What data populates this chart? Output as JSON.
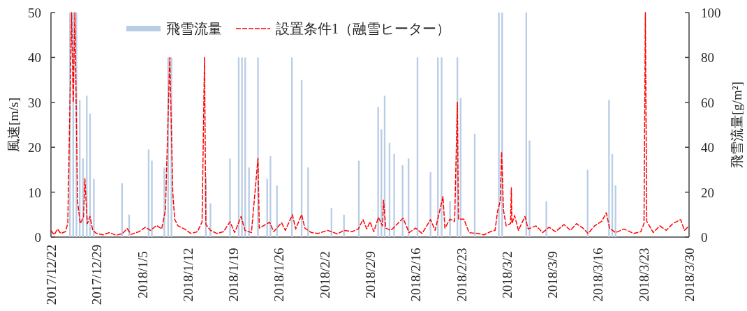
{
  "chart_data": {
    "type": "bar",
    "ylabel": "風速[m/s]",
    "y2label": "飛雪流量[g/m²]",
    "legend": "top left",
    "xlim": [
      "2017-12-22",
      "2018-03-30"
    ],
    "xticks": [
      {
        "value": "2017-12-22",
        "label": "2017/12/22"
      },
      {
        "value": "2017-12-29",
        "label": "2017/12/29"
      },
      {
        "value": "2018-01-05",
        "label": "2018/1/5"
      },
      {
        "value": "2018-01-12",
        "label": "2018/1/12"
      },
      {
        "value": "2018-01-19",
        "label": "2018/1/19"
      },
      {
        "value": "2018-01-26",
        "label": "2018/1/26"
      },
      {
        "value": "2018-02-02",
        "label": "2018/2/2"
      },
      {
        "value": "2018-02-09",
        "label": "2018/2/9"
      },
      {
        "value": "2018-02-16",
        "label": "2018/2/16"
      },
      {
        "value": "2018-02-23",
        "label": "2018/2/23"
      },
      {
        "value": "2018-03-02",
        "label": "2018/3/2"
      },
      {
        "value": "2018-03-09",
        "label": "2018/3/9"
      },
      {
        "value": "2018-03-16",
        "label": "2018/3/16"
      },
      {
        "value": "2018-03-23",
        "label": "2018/3/23"
      },
      {
        "value": "2018-03-30",
        "label": "2018/3/30"
      }
    ],
    "ylim": [
      0,
      50
    ],
    "yticks": [
      0,
      10,
      20,
      30,
      40,
      50
    ],
    "y2lim": [
      0,
      100
    ],
    "y2ticks": [
      0,
      20,
      40,
      60,
      80,
      100
    ],
    "series": [
      {
        "name": "飛雪流量",
        "axis": "y2",
        "color": "#b9cde5",
        "x": [
          "2017-12-24T22:00",
          "2017-12-25T10:00",
          "2017-12-25T22:00",
          "2017-12-26T10:00",
          "2017-12-26T22:00",
          "2017-12-27T12:00",
          "2017-12-28T00:00",
          "2017-12-28T14:00",
          "2018-01-01T22:00",
          "2018-01-03T00:00",
          "2018-01-06T00:00",
          "2018-01-06T12:00",
          "2018-01-08T10:00",
          "2018-01-09T00:00",
          "2018-01-09T12:00",
          "2018-01-14T19:00",
          "2018-01-15T12:00",
          "2018-01-18T12:00",
          "2018-01-19T20:00",
          "2018-01-20T08:00",
          "2018-01-20T20:00",
          "2018-01-21T10:00",
          "2018-01-22T19:00",
          "2018-01-24T05:00",
          "2018-01-24T17:00",
          "2018-01-25T17:00",
          "2018-01-28T00:00",
          "2018-01-29T12:00",
          "2018-01-30T12:00",
          "2018-02-03T02:00",
          "2018-02-05T00:00",
          "2018-02-07T07:00",
          "2018-02-10T06:00",
          "2018-02-10T18:00",
          "2018-02-11T06:00",
          "2018-02-12T00:00",
          "2018-02-12T17:00",
          "2018-02-14T00:00",
          "2018-02-14T22:00",
          "2018-02-16T07:00",
          "2018-02-18T07:00",
          "2018-02-19T10:00",
          "2018-02-20T00:00",
          "2018-02-21T07:00",
          "2018-02-22T10:00",
          "2018-02-22T22:00",
          "2018-02-25T02:00",
          "2018-02-28T19:00",
          "2018-03-01T07:00",
          "2018-03-05T00:00",
          "2018-03-05T12:00",
          "2018-03-08T02:00",
          "2018-03-14T10:00",
          "2018-03-17T17:00",
          "2018-03-18T05:00",
          "2018-03-18T17:00"
        ],
        "values": [
          100,
          100,
          100,
          61,
          35,
          63,
          55,
          26,
          24,
          10,
          39,
          34,
          31,
          80,
          80,
          27,
          15,
          35,
          80,
          80,
          80,
          31,
          80,
          26,
          36,
          23,
          80,
          70,
          31,
          13,
          10,
          34,
          58,
          48,
          63,
          42,
          37,
          32,
          35,
          80,
          29,
          80,
          80,
          16,
          80,
          62,
          46,
          100,
          100,
          100,
          43,
          16,
          30,
          61,
          37,
          23
        ]
      },
      {
        "name": "設置条件1（融雪ヒーター）",
        "type": "line",
        "axis": "y",
        "color": "#ff0000",
        "line_style": "dashed",
        "x": [
          "2017-12-22T00:00",
          "2017-12-22T12:00",
          "2017-12-23T00:00",
          "2017-12-23T12:00",
          "2017-12-24T05:00",
          "2017-12-24T14:00",
          "2017-12-25T04:00",
          "2017-12-25T10:00",
          "2017-12-25T16:00",
          "2017-12-26T02:00",
          "2017-12-26T12:00",
          "2017-12-27T00:00",
          "2017-12-27T05:00",
          "2017-12-27T14:00",
          "2017-12-28T00:00",
          "2017-12-28T10:00",
          "2017-12-29T00:00",
          "2017-12-30T00:00",
          "2017-12-31T00:00",
          "2018-01-01T00:00",
          "2018-01-02T00:00",
          "2018-01-02T17:00",
          "2018-01-03T07:00",
          "2018-01-04T12:00",
          "2018-01-05T12:00",
          "2018-01-06T07:00",
          "2018-01-07T05:00",
          "2018-01-08T00:00",
          "2018-01-08T14:00",
          "2018-01-09T06:00",
          "2018-01-09T17:00",
          "2018-01-10T00:00",
          "2018-01-10T12:00",
          "2018-01-11T12:00",
          "2018-01-12T12:00",
          "2018-01-13T12:00",
          "2018-01-14T05:00",
          "2018-01-14T14:00",
          "2018-01-14T19:00",
          "2018-01-15T12:00",
          "2018-01-16T12:00",
          "2018-01-17T12:00",
          "2018-01-18T12:00",
          "2018-01-19T05:00",
          "2018-01-20T05:00",
          "2018-01-20T19:00",
          "2018-01-21T19:00",
          "2018-01-22T19:00",
          "2018-01-23T00:00",
          "2018-01-24T14:00",
          "2018-01-25T05:00",
          "2018-01-26T10:00",
          "2018-01-27T00:00",
          "2018-01-28T02:00",
          "2018-01-28T14:00",
          "2018-01-29T12:00",
          "2018-01-30T00:00",
          "2018-01-31T00:00",
          "2018-02-01T00:00",
          "2018-02-02T12:00",
          "2018-02-04T00:00",
          "2018-02-05T00:00",
          "2018-02-06T05:00",
          "2018-02-07T05:00",
          "2018-02-07T22:00",
          "2018-02-08T12:00",
          "2018-02-09T00:00",
          "2018-02-09T14:00",
          "2018-02-10T07:00",
          "2018-02-10T22:00",
          "2018-02-11T02:00",
          "2018-02-11T10:00",
          "2018-02-12T05:00",
          "2018-02-14T02:00",
          "2018-02-15T00:00",
          "2018-02-16T00:00",
          "2018-02-17T00:00",
          "2018-02-18T07:00",
          "2018-02-19T00:00",
          "2018-02-20T05:00",
          "2018-02-20T12:00",
          "2018-02-21T07:00",
          "2018-02-22T00:00",
          "2018-02-22T10:00",
          "2018-02-22T14:00",
          "2018-02-23T10:00",
          "2018-02-24T05:00",
          "2018-02-25T12:00",
          "2018-02-26T12:00",
          "2018-02-27T12:00",
          "2018-02-28T05:00",
          "2018-02-28T14:00",
          "2018-03-01T00:00",
          "2018-03-01T05:00",
          "2018-03-01T12:00",
          "2018-03-01T22:00",
          "2018-03-02T14:00",
          "2018-03-02T17:00",
          "2018-03-02T19:00",
          "2018-03-03T05:00",
          "2018-03-03T19:00",
          "2018-03-04T19:00",
          "2018-03-05T07:00",
          "2018-03-06T12:00",
          "2018-03-07T12:00",
          "2018-03-08T12:00",
          "2018-03-09T12:00",
          "2018-03-10T19:00",
          "2018-03-11T19:00",
          "2018-03-12T17:00",
          "2018-03-13T17:00",
          "2018-03-14T12:00",
          "2018-03-15T12:00",
          "2018-03-16T14:00",
          "2018-03-17T07:00",
          "2018-03-17T19:00",
          "2018-03-18T17:00",
          "2018-03-20T00:00",
          "2018-03-21T12:00",
          "2018-03-22T14:00",
          "2018-03-23T02:00",
          "2018-03-23T07:00",
          "2018-03-23T12:00",
          "2018-03-24T12:00",
          "2018-03-25T12:00",
          "2018-03-26T12:00",
          "2018-03-27T12:00",
          "2018-03-28T17:00",
          "2018-03-29T07:00",
          "2018-03-30T00:00"
        ],
        "values": [
          1.5,
          0.5,
          1.8,
          0.8,
          1.2,
          3,
          50,
          30,
          50,
          8,
          3,
          4.5,
          13,
          3,
          4.6,
          1.5,
          0.8,
          0.5,
          1,
          0.4,
          0.8,
          1.9,
          0.6,
          1.2,
          2.2,
          1.5,
          2.6,
          1.8,
          6,
          40,
          10,
          4,
          2.5,
          1.8,
          0.8,
          1.2,
          3.4,
          40,
          2.8,
          1.5,
          0.8,
          1.2,
          3.4,
          1,
          4.6,
          1.5,
          1,
          17.5,
          2,
          3.3,
          1.2,
          3.2,
          1.5,
          5,
          1.8,
          5,
          2,
          1,
          0.8,
          1.5,
          0.7,
          1.5,
          1.2,
          1.8,
          3.9,
          1.8,
          3.4,
          1.2,
          4.4,
          2.5,
          8.2,
          2,
          1.5,
          4.2,
          1,
          2,
          0.8,
          3.9,
          1.5,
          9,
          2,
          4,
          3.5,
          30,
          4,
          4,
          1,
          0.8,
          0.5,
          1.2,
          1.5,
          5.7,
          8,
          19,
          6,
          2.5,
          3,
          11,
          3,
          4.8,
          1.5,
          4.6,
          1.8,
          2.5,
          1,
          2.2,
          1.2,
          2.8,
          1.5,
          3,
          2,
          0.8,
          2.5,
          3.5,
          5.4,
          2,
          1,
          1.8,
          0.8,
          1.2,
          3,
          50,
          3.5,
          1,
          2.5,
          1.5,
          3,
          3.9,
          1.5,
          2.5
        ]
      }
    ]
  }
}
